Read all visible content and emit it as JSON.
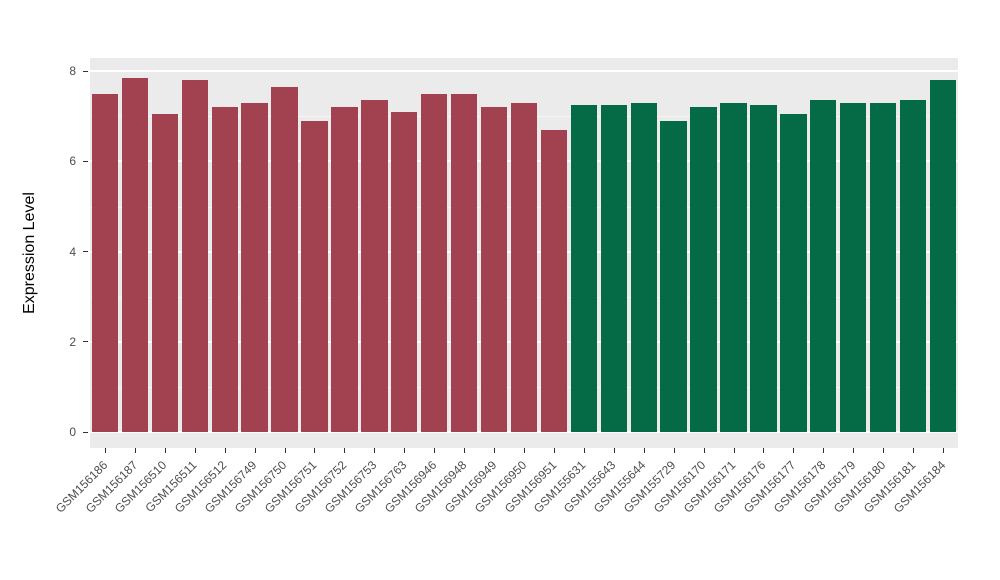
{
  "chart_data": {
    "type": "bar",
    "title": "",
    "xlabel": "",
    "ylabel": "Expression Level",
    "ylim": [
      0,
      8
    ],
    "y_major_ticks": [
      0,
      2,
      4,
      6,
      8
    ],
    "y_minor_ticks": [
      1,
      3,
      5,
      7
    ],
    "legend_position": "none",
    "grid": true,
    "panel_background": "#EBEBEB",
    "grid_color": "#FFFFFF",
    "tick_text_color": "#4D4D4D",
    "group_colors": {
      "group1": "#A2414F",
      "group2": "#046B46"
    },
    "categories": [
      "GSM156186",
      "GSM156187",
      "GSM156510",
      "GSM156511",
      "GSM156512",
      "GSM156749",
      "GSM156750",
      "GSM156751",
      "GSM156752",
      "GSM156753",
      "GSM156763",
      "GSM156946",
      "GSM156948",
      "GSM156949",
      "GSM156950",
      "GSM156951",
      "GSM155631",
      "GSM155643",
      "GSM155644",
      "GSM155729",
      "GSM156170",
      "GSM156171",
      "GSM156176",
      "GSM156177",
      "GSM156178",
      "GSM156179",
      "GSM156180",
      "GSM156181",
      "GSM156184"
    ],
    "values": [
      7.5,
      7.85,
      7.05,
      7.8,
      7.2,
      7.3,
      7.65,
      6.9,
      7.2,
      7.35,
      7.1,
      7.5,
      7.5,
      7.2,
      7.3,
      6.7,
      7.25,
      7.25,
      7.3,
      6.9,
      7.2,
      7.3,
      7.25,
      7.05,
      7.35,
      7.3,
      7.3,
      7.35,
      7.8
    ],
    "bar_groups": [
      "group1",
      "group1",
      "group1",
      "group1",
      "group1",
      "group1",
      "group1",
      "group1",
      "group1",
      "group1",
      "group1",
      "group1",
      "group1",
      "group1",
      "group1",
      "group1",
      "group2",
      "group2",
      "group2",
      "group2",
      "group2",
      "group2",
      "group2",
      "group2",
      "group2",
      "group2",
      "group2",
      "group2",
      "group2"
    ]
  }
}
